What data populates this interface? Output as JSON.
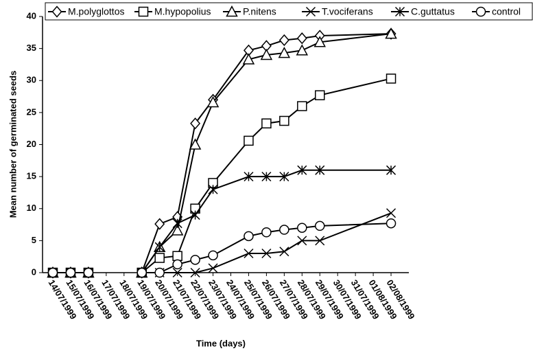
{
  "chart_data": {
    "type": "line",
    "y_label": "Mean number of germinated seeds",
    "x_label": "Time (days)",
    "categories": [
      "14/07/1999",
      "15/07/1999",
      "16/07/1999",
      "17/07/1999",
      "18/07/1999",
      "19/07/1999",
      "20/07/1999",
      "21/07/1999",
      "22/07/1999",
      "23/07/1999",
      "24/07/1999",
      "25/07/1999",
      "26/07/1999",
      "27/07/1999",
      "28/07/1999",
      "29/07/1999",
      "30/07/1999",
      "31/07/1999",
      "01/08/1999",
      "02/08/1999"
    ],
    "x": [
      "14/07/1999",
      "15/07/1999",
      "16/07/1999",
      "17/07/1999",
      "19/07/1999",
      "20/07/1999",
      "21/07/1999",
      "22/07/1999",
      "23/07/1999",
      "25/07/1999",
      "26/07/1999",
      "27/07/1999",
      "28/07/1999",
      "29/07/1999",
      "02/08/1999"
    ],
    "series": [
      {
        "name": "M.polyglottos",
        "marker": "diamond",
        "color": "#000000",
        "values": [
          0,
          0,
          0,
          null,
          0,
          7.6,
          8.7,
          23.3,
          27,
          34.7,
          35.4,
          36.3,
          36.6,
          37,
          37.3
        ]
      },
      {
        "name": "M.hypopolius",
        "marker": "square",
        "color": "#000000",
        "values": [
          0,
          0,
          0,
          null,
          0,
          2.3,
          2.6,
          10,
          14,
          20.6,
          23.3,
          23.7,
          26,
          27.7,
          30.3
        ]
      },
      {
        "name": "P.nitens",
        "marker": "triangle",
        "color": "#000000",
        "values": [
          0,
          0,
          0,
          null,
          0,
          4,
          6.6,
          20,
          26.6,
          33.3,
          34,
          34.3,
          34.7,
          36,
          37.3
        ]
      },
      {
        "name": "T.vociferans",
        "marker": "x",
        "color": "#000000",
        "values": [
          0,
          0,
          0,
          null,
          0,
          0,
          0,
          0,
          0.7,
          3,
          3,
          3.3,
          5,
          5,
          9.3
        ]
      },
      {
        "name": "C.guttatus",
        "marker": "asterisk",
        "color": "#000000",
        "values": [
          0,
          0,
          0,
          null,
          0,
          4,
          7.7,
          9,
          13,
          15,
          15,
          15,
          16,
          16,
          16
        ]
      },
      {
        "name": "control",
        "marker": "circle",
        "color": "#000000",
        "values": [
          0,
          0,
          0,
          null,
          0,
          0,
          1.3,
          2,
          2.7,
          5.7,
          6.3,
          6.7,
          7,
          7.3,
          7.7
        ]
      }
    ],
    "ylim": [
      0,
      40
    ],
    "yticks": [
      0,
      5,
      10,
      15,
      20,
      25,
      30,
      35,
      40
    ]
  }
}
